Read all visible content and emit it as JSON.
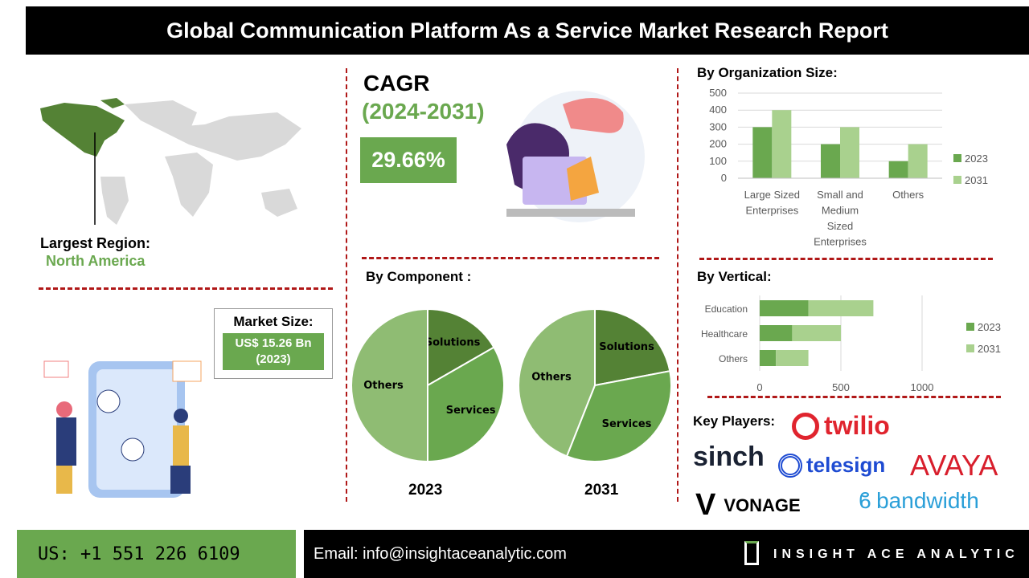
{
  "title": "Global Communication Platform As a Service Market Research Report",
  "region": {
    "label": "Largest Region:",
    "value": "North America"
  },
  "cagr": {
    "label": "CAGR",
    "period": "(2024-2031)",
    "value": "29.66%"
  },
  "market_size": {
    "label": "Market Size:",
    "value": "US$ 15.26 Bn",
    "year": "(2023)"
  },
  "key_players": {
    "label": "Key Players:",
    "logos": [
      "twilio",
      "sinch",
      "telesign",
      "AVAYA",
      "VONAGE",
      "bandwidth"
    ]
  },
  "footer": {
    "phone": "US: +1 551 226 6109",
    "email": "Email: info@insightaceanalytic.com",
    "brand": "INSIGHT ACE ANALYTIC"
  },
  "colors": {
    "dark": "#548235",
    "mid": "#6aa84f",
    "light": "#a9d18e",
    "pie_light": "#8fbc73"
  },
  "chart_data": [
    {
      "type": "bar",
      "title": "By Organization Size:",
      "categories": [
        "Large Sized Enterprises",
        "Small and Medium Sized Enterprises",
        "Others"
      ],
      "series": [
        {
          "name": "2023",
          "values": [
            300,
            200,
            100
          ]
        },
        {
          "name": "2031",
          "values": [
            400,
            300,
            200
          ]
        }
      ],
      "ylim": [
        0,
        500
      ],
      "yticks": [
        "0",
        "100",
        "200",
        "300",
        "400",
        "500"
      ],
      "grid": true,
      "legend": "right"
    },
    {
      "type": "bar",
      "orientation": "horizontal",
      "stacked": true,
      "title": "By Vertical:",
      "categories": [
        "Education",
        "Healthcare",
        "Others"
      ],
      "series": [
        {
          "name": "2023",
          "values": [
            300,
            200,
            100
          ]
        },
        {
          "name": "2031",
          "values": [
            400,
            300,
            200
          ]
        }
      ],
      "xlim": [
        0,
        1250
      ],
      "xticks": [
        "0",
        "500",
        "1000"
      ],
      "legend": "right"
    },
    {
      "type": "pie",
      "title": "By Component :",
      "charts": [
        {
          "label": "2023",
          "slices": [
            {
              "name": "Solutions",
              "value": 16.7
            },
            {
              "name": "Services",
              "value": 33.3
            },
            {
              "name": "Others",
              "value": 50
            }
          ]
        },
        {
          "label": "2031",
          "slices": [
            {
              "name": "Solutions",
              "value": 22
            },
            {
              "name": "Services",
              "value": 34
            },
            {
              "name": "Others",
              "value": 44
            }
          ]
        }
      ]
    }
  ]
}
